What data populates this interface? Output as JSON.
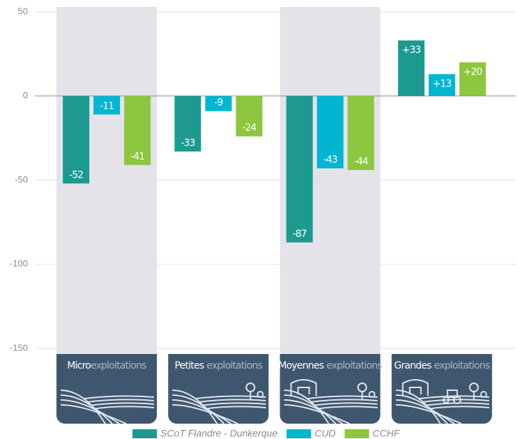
{
  "chart_data": {
    "type": "bar",
    "categories": [
      [
        "Micro",
        "exploitations"
      ],
      [
        "Petites",
        "exploitations"
      ],
      [
        "Moyennes",
        "exploitations"
      ],
      [
        "Grandes",
        "exploitations"
      ]
    ],
    "series": [
      {
        "name": "SCoT Flandre - Dunkerque",
        "color": "#1c9a90",
        "values": [
          -52,
          -33,
          -87,
          33
        ],
        "value_labels": [
          "-52",
          "-33",
          "-87",
          "+33"
        ]
      },
      {
        "name": "CUD",
        "color": "#00b6d2",
        "values": [
          -11,
          -9,
          -43,
          13
        ],
        "value_labels": [
          "-11",
          "-9",
          "-43",
          "+13"
        ]
      },
      {
        "name": "CCHF",
        "color": "#8dc63f",
        "values": [
          -41,
          -24,
          -44,
          20
        ],
        "value_labels": [
          "-41",
          "-24",
          "-44",
          "+20"
        ]
      }
    ],
    "ylim": [
      -150,
      50
    ],
    "yticks": [
      50,
      0,
      -50,
      -100,
      -150
    ],
    "grid": true,
    "legend": "bottom"
  }
}
